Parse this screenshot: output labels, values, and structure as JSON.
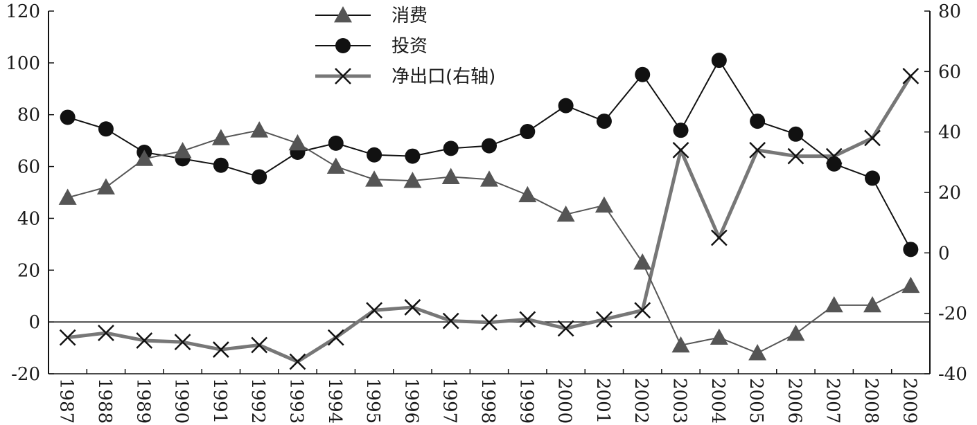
{
  "chart_data": {
    "type": "line",
    "x": [
      "1987",
      "1988",
      "1989",
      "1990",
      "1991",
      "1992",
      "1993",
      "1994",
      "1995",
      "1996",
      "1997",
      "1998",
      "1999",
      "2000",
      "2001",
      "2002",
      "2003",
      "2004",
      "2005",
      "2006",
      "2007",
      "2008",
      "2009"
    ],
    "left_ylim": [
      -20,
      120
    ],
    "left_yticks": [
      "-20",
      "0",
      "20",
      "40",
      "60",
      "80",
      "100",
      "120"
    ],
    "right_ylim": [
      -40,
      80
    ],
    "right_yticks": [
      "-40",
      "-20",
      "0",
      "20",
      "40",
      "60",
      "80"
    ],
    "grid": false,
    "legend_position": "top-center",
    "series": [
      {
        "name": "消费",
        "axis": "left",
        "marker": "triangle",
        "color": "#555555",
        "values": [
          48,
          52,
          63,
          66,
          71,
          74,
          69,
          60,
          55,
          54.5,
          56,
          55,
          49,
          41.5,
          45,
          23,
          -9,
          -6,
          -12,
          -4.5,
          6.5,
          6.5,
          14
        ]
      },
      {
        "name": "投资",
        "axis": "left",
        "marker": "circle",
        "color": "#111111",
        "values": [
          79,
          74.5,
          65.5,
          63,
          60.5,
          56,
          65.5,
          69,
          64.5,
          64,
          67,
          68,
          73.5,
          83.5,
          77.5,
          95.5,
          74,
          101,
          77.5,
          72.5,
          61,
          55.5,
          28
        ]
      },
      {
        "name": "净出口(右轴)",
        "axis": "right",
        "marker": "x",
        "color": "#777777",
        "values": [
          -28,
          -26.5,
          -29,
          -29.5,
          -32,
          -30.5,
          -36,
          -28,
          -19,
          -18,
          -22.5,
          -23,
          -22,
          -25,
          -22,
          -19,
          34,
          5,
          34,
          32,
          32,
          38,
          58.5
        ]
      }
    ]
  }
}
